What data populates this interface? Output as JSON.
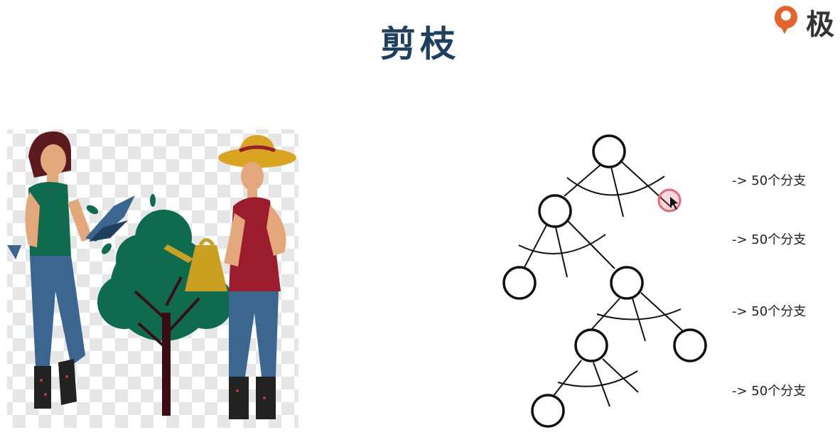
{
  "slide": {
    "title": "剪枝"
  },
  "logo": {
    "text": "极",
    "icon": "brand-logo-icon",
    "accent": "#e8632a"
  },
  "diagram": {
    "annotations": [
      "-> 50个分支",
      "-> 50个分支",
      "-> 50个分支",
      "-> 50个分支"
    ],
    "cursor": "mouse-pointer-icon"
  },
  "colors": {
    "title": "#1f3f5f",
    "tree_green": "#0f6b4e",
    "shirt_red": "#9b1c2c",
    "jeans": "#3a6690",
    "hat": "#d9a520",
    "can": "#c9a020"
  }
}
